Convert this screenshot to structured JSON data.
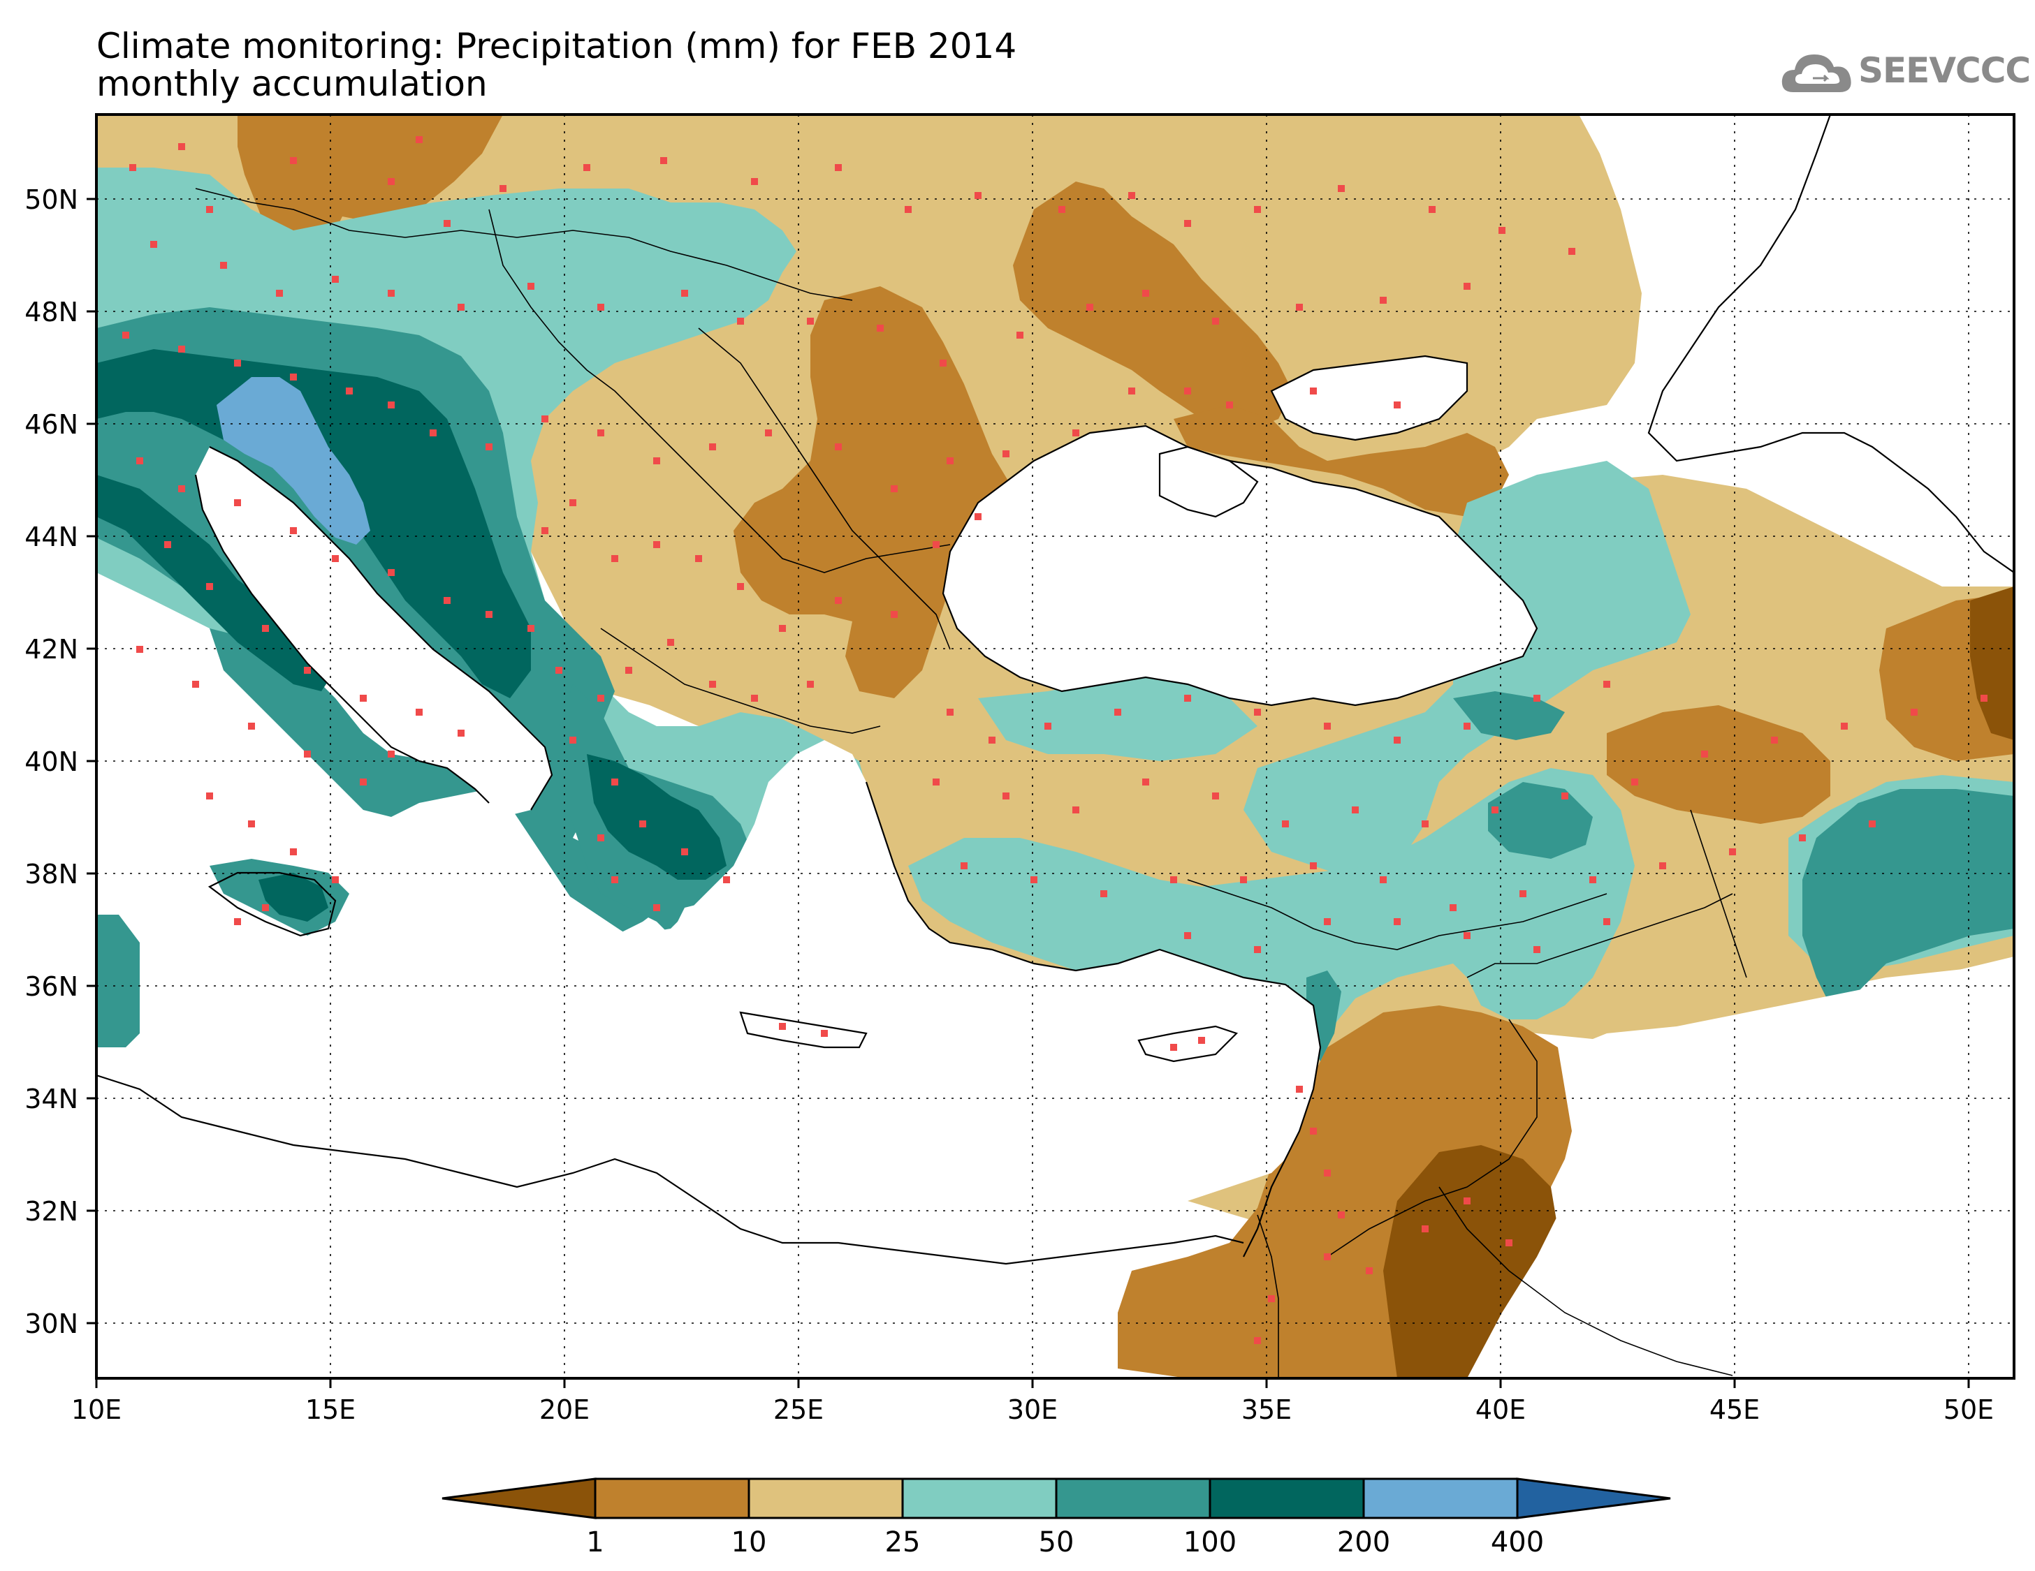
{
  "title": "Climate monitoring: Precipitation (mm) for FEB 2014",
  "subtitle": "monthly accumulation",
  "logo_text": "SEEVCCC",
  "map": {
    "lon_range": [
      10,
      51
    ],
    "lat_range": [
      29,
      51.5
    ],
    "x_ticks": [
      "10E",
      "15E",
      "20E",
      "25E",
      "30E",
      "35E",
      "40E",
      "45E",
      "50E"
    ],
    "y_ticks": [
      "50N",
      "48N",
      "46N",
      "44N",
      "42N",
      "40N",
      "38N",
      "36N",
      "34N",
      "32N",
      "30N"
    ],
    "gridlines": "dotted",
    "station_marker_color": "#f04a4a"
  },
  "legend": {
    "levels": [
      "1",
      "10",
      "25",
      "50",
      "100",
      "200",
      "400"
    ],
    "colors": [
      "#8b5309",
      "#bf812d",
      "#dfc27d",
      "#80cdc1",
      "#35978f",
      "#01665e",
      "#6aaad5",
      "#2262a0"
    ],
    "extend": "both"
  }
}
